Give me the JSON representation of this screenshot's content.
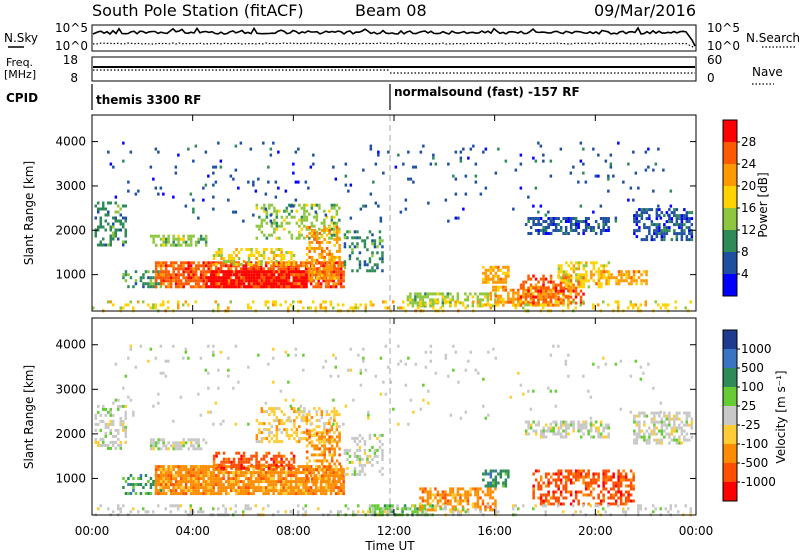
{
  "header": {
    "title": "South Pole Station (fitACF)",
    "beam": "Beam 08",
    "date": "09/Mar/2016"
  },
  "summary_panels": {
    "nsky_label": "N.Sky",
    "nsky_ticks": [
      "10^5",
      "10^0"
    ],
    "nsearch_label": "N.Search",
    "nsearch_ticks": [
      "10^5",
      "10^0"
    ],
    "freq_label_1": "Freq.",
    "freq_label_2": "[MHz]",
    "freq_ticks": [
      "18",
      "8"
    ],
    "nave_label": "Nave",
    "nave_ticks": [
      "60",
      "0"
    ],
    "cpid_label": "CPID",
    "cpid_segments": [
      {
        "label": "themis 3300 RF",
        "start_hour": 0
      },
      {
        "label": "normalsound (fast) -157 RF",
        "start_hour": 12
      }
    ]
  },
  "chart_data": [
    {
      "type": "heatmap",
      "panel": "power",
      "ylabel": "Slant Range [km]",
      "yticks": [
        1000,
        2000,
        3000,
        4000
      ],
      "ylim": [
        180,
        4600
      ],
      "xlim": [
        0,
        24
      ],
      "xticks": [
        "00:00",
        "04:00",
        "08:00",
        "12:00",
        "16:00",
        "20:00",
        "00:00"
      ],
      "colorbar_label": "Power [dB]",
      "colorbar_ticks": [
        "28",
        "24",
        "20",
        "16",
        "12",
        "8",
        "4"
      ],
      "colorbar_colors": [
        "#ff0000",
        "#ff5a00",
        "#ff9900",
        "#ffd200",
        "#8ec63f",
        "#2e8b57",
        "#1e4fa0",
        "#0000ff"
      ],
      "regions": [
        {
          "t0": 0.1,
          "t1": 1.3,
          "r0": 1650,
          "r1": 2650,
          "c": 5,
          "d": 0.4
        },
        {
          "t0": 1.2,
          "t1": 2.8,
          "r0": 750,
          "r1": 1100,
          "c": 5,
          "d": 0.45
        },
        {
          "t0": 2.3,
          "t1": 4.5,
          "r0": 1650,
          "r1": 1900,
          "c": 4,
          "d": 0.55
        },
        {
          "t0": 2.5,
          "t1": 10.0,
          "r0": 700,
          "r1": 1300,
          "c": 1,
          "d": 0.8
        },
        {
          "t0": 4.5,
          "t1": 8.5,
          "r0": 750,
          "r1": 1100,
          "c": 0,
          "d": 0.85
        },
        {
          "t0": 4.8,
          "t1": 8.0,
          "r0": 1250,
          "r1": 1600,
          "c": 3,
          "d": 0.5
        },
        {
          "t0": 6.5,
          "t1": 9.8,
          "r0": 1800,
          "r1": 2600,
          "c": 4,
          "d": 0.4
        },
        {
          "t0": 8.5,
          "t1": 9.8,
          "r0": 900,
          "r1": 2100,
          "c": 2,
          "d": 0.5
        },
        {
          "t0": 10.0,
          "t1": 11.5,
          "r0": 1100,
          "r1": 2000,
          "c": 5,
          "d": 0.3
        },
        {
          "t0": 12.5,
          "t1": 16.0,
          "r0": 300,
          "r1": 600,
          "c": 4,
          "d": 0.6
        },
        {
          "t0": 15.5,
          "t1": 16.5,
          "r0": 800,
          "r1": 1200,
          "c": 2,
          "d": 0.6
        },
        {
          "t0": 15.8,
          "t1": 19.0,
          "r0": 300,
          "r1": 750,
          "c": 2,
          "d": 0.55
        },
        {
          "t0": 17.0,
          "t1": 19.5,
          "r0": 350,
          "r1": 1000,
          "c": 1,
          "d": 0.55
        },
        {
          "t0": 18.5,
          "t1": 20.5,
          "r0": 700,
          "r1": 1300,
          "c": 3,
          "d": 0.5
        },
        {
          "t0": 20.0,
          "t1": 22.0,
          "r0": 800,
          "r1": 1100,
          "c": 2,
          "d": 0.55
        },
        {
          "t0": 17.2,
          "t1": 20.5,
          "r0": 1900,
          "r1": 2300,
          "c": 6,
          "d": 0.5
        },
        {
          "t0": 21.5,
          "t1": 23.8,
          "r0": 1800,
          "r1": 2500,
          "c": 6,
          "d": 0.55
        },
        {
          "t0": 0.0,
          "t1": 23.8,
          "r0": 200,
          "r1": 420,
          "c": 3,
          "d": 0.22
        },
        {
          "t0": 0.5,
          "t1": 23.0,
          "r0": 2200,
          "r1": 4000,
          "c": 6,
          "d": 0.03
        }
      ]
    },
    {
      "type": "heatmap",
      "panel": "velocity",
      "ylabel": "Slant Range [km]",
      "yticks": [
        1000,
        2000,
        3000,
        4000
      ],
      "ylim": [
        180,
        4600
      ],
      "xlim": [
        0,
        24
      ],
      "xticks": [
        "00:00",
        "04:00",
        "08:00",
        "12:00",
        "16:00",
        "20:00",
        "00:00"
      ],
      "xlabel": "Time UT",
      "colorbar_label": "Velocity [m s⁻¹]",
      "colorbar_ticks": [
        "1000",
        "500",
        "100",
        "25",
        "-25",
        "-100",
        "-500",
        "-1000"
      ],
      "colorbar_colors": [
        "#1e3c8f",
        "#3a74c4",
        "#2e8b57",
        "#66cc33",
        "#c8c8c8",
        "#ffcc33",
        "#ff8c00",
        "#ff5000",
        "#ff0000"
      ],
      "regions": [
        {
          "t0": 0.1,
          "t1": 1.3,
          "r0": 1650,
          "r1": 2650,
          "c": 4,
          "d": 0.4
        },
        {
          "t0": 1.2,
          "t1": 2.8,
          "r0": 650,
          "r1": 1100,
          "c": 2,
          "d": 0.4
        },
        {
          "t0": 2.3,
          "t1": 4.5,
          "r0": 1650,
          "r1": 1900,
          "c": 4,
          "d": 0.55
        },
        {
          "t0": 2.5,
          "t1": 10.0,
          "r0": 650,
          "r1": 1300,
          "c": 6,
          "d": 0.85
        },
        {
          "t0": 4.8,
          "t1": 8.0,
          "r0": 1250,
          "r1": 1600,
          "c": 7,
          "d": 0.5
        },
        {
          "t0": 6.5,
          "t1": 9.8,
          "r0": 1800,
          "r1": 2600,
          "c": 5,
          "d": 0.4
        },
        {
          "t0": 8.5,
          "t1": 9.8,
          "r0": 900,
          "r1": 2100,
          "c": 6,
          "d": 0.5
        },
        {
          "t0": 10.0,
          "t1": 11.5,
          "r0": 1100,
          "r1": 2000,
          "c": 4,
          "d": 0.3
        },
        {
          "t0": 11.0,
          "t1": 13.5,
          "r0": 200,
          "r1": 420,
          "c": 3,
          "d": 0.6
        },
        {
          "t0": 13.0,
          "t1": 16.0,
          "r0": 300,
          "r1": 800,
          "c": 6,
          "d": 0.55
        },
        {
          "t0": 15.5,
          "t1": 16.5,
          "r0": 800,
          "r1": 1200,
          "c": 2,
          "d": 0.6
        },
        {
          "t0": 17.5,
          "t1": 21.5,
          "r0": 400,
          "r1": 1200,
          "c": 7,
          "d": 0.55
        },
        {
          "t0": 17.2,
          "t1": 20.5,
          "r0": 1900,
          "r1": 2300,
          "c": 4,
          "d": 0.5
        },
        {
          "t0": 21.5,
          "t1": 23.8,
          "r0": 1800,
          "r1": 2500,
          "c": 4,
          "d": 0.55
        },
        {
          "t0": 0.0,
          "t1": 23.8,
          "r0": 200,
          "r1": 420,
          "c": 4,
          "d": 0.2
        },
        {
          "t0": 0.5,
          "t1": 23.0,
          "r0": 2200,
          "r1": 4000,
          "c": 4,
          "d": 0.03
        }
      ]
    }
  ]
}
